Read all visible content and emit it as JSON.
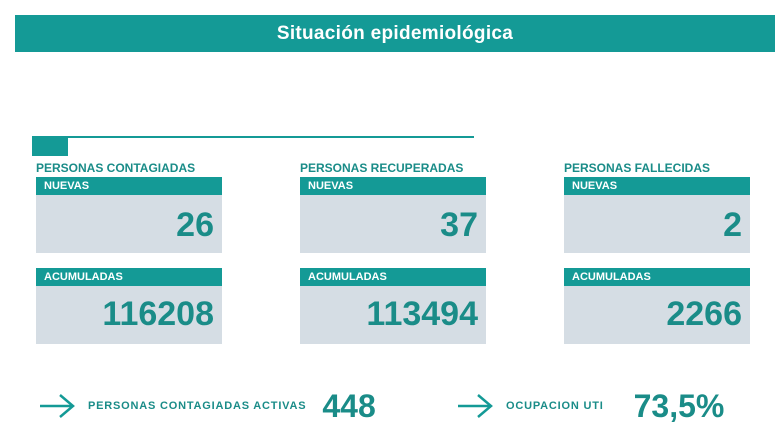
{
  "banner": {
    "title": "Situación epidemiológica"
  },
  "colors": {
    "teal": "#149a96",
    "text": "#1a8c88",
    "card": "#d5dde4"
  },
  "sections": [
    {
      "title": "PERSONAS CONTAGIADAS",
      "nuevas_label": "NUEVAS",
      "nuevas_value": "26",
      "acum_label": "ACUMULADAS",
      "acum_value": "116208"
    },
    {
      "title": "PERSONAS RECUPERADAS",
      "nuevas_label": "NUEVAS",
      "nuevas_value": "37",
      "acum_label": "ACUMULADAS",
      "acum_value": "113494"
    },
    {
      "title": "PERSONAS FALLECIDAS",
      "nuevas_label": "NUEVAS",
      "nuevas_value": "2",
      "acum_label": "ACUMULADAS",
      "acum_value": "2266"
    }
  ],
  "summary": {
    "activas_label": "PERSONAS CONTAGIADAS ACTIVAS",
    "activas_value": "448",
    "uti_label": "OCUPACION UTI",
    "uti_value": "73,5%",
    "arrow_icon": "arrow-right-icon"
  }
}
